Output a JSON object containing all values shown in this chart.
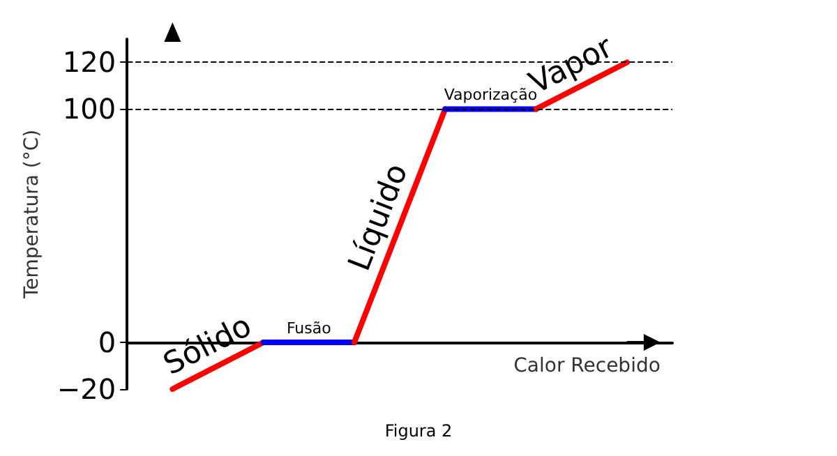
{
  "chart_data": {
    "type": "line",
    "xlabel": "Calor Recebido",
    "ylabel": "Temperatura (°C)",
    "categories": [
      null,
      null,
      null,
      null,
      null,
      null
    ],
    "series": [
      {
        "color": "#ff0000",
        "values": [
          -20,
          0,
          null,
          null,
          null,
          null
        ]
      },
      {
        "color": "#0000ff",
        "values": [
          null,
          0,
          0,
          null,
          null,
          null
        ]
      },
      {
        "color": "#ff0000",
        "values": [
          null,
          null,
          0,
          100,
          null,
          null
        ]
      },
      {
        "color": "#0000ff",
        "values": [
          null,
          null,
          null,
          100,
          100,
          null
        ]
      },
      {
        "color": "#ff0000",
        "values": [
          null,
          null,
          null,
          null,
          100,
          120
        ]
      }
    ],
    "ylim": [
      -20,
      130
    ],
    "yticks": [
      -20,
      0,
      100,
      120
    ],
    "ref_lines": [
      {
        "axis": "y",
        "value": 100,
        "line_style": "dashed",
        "color": "#000000"
      },
      {
        "axis": "y",
        "value": 120,
        "line_style": "dashed",
        "color": "#000000"
      }
    ],
    "annotations": [
      "Sólido",
      "Fusão",
      "Líquido",
      "Vaporização",
      "Vapor",
      "Figura 2"
    ],
    "marker": "none",
    "line_style": "solid",
    "grid": false
  }
}
